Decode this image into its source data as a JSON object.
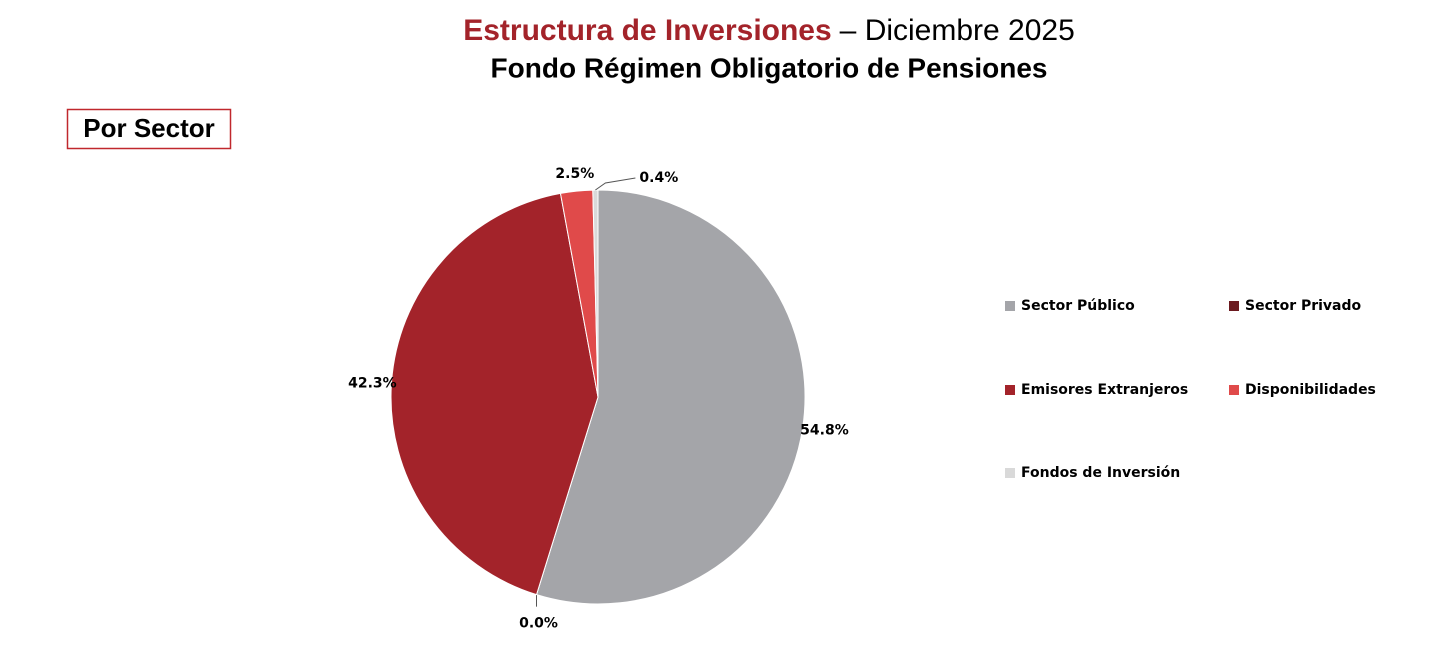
{
  "chart_data": {
    "type": "pie",
    "title": {
      "highlight": "Estructura de Inversiones",
      "rest": "– Diciembre 2025"
    },
    "subtitle": "Fondo Régimen Obligatorio de Pensiones",
    "section_label": "Por Sector",
    "categories": [
      "Sector Público",
      "Sector Privado",
      "Emisores Extranjeros",
      "Disponibilidades",
      "Fondos de Inversión"
    ],
    "values": [
      54.8,
      0.0,
      42.3,
      2.5,
      0.4
    ],
    "value_labels": [
      "54.8%",
      "0.0%",
      "42.3%",
      "2.5%",
      "0.4%"
    ],
    "colors": [
      "#a4a5a9",
      "#6b1a1f",
      "#a3232a",
      "#e04a4a",
      "#d9d9d9"
    ],
    "legend": "right"
  }
}
